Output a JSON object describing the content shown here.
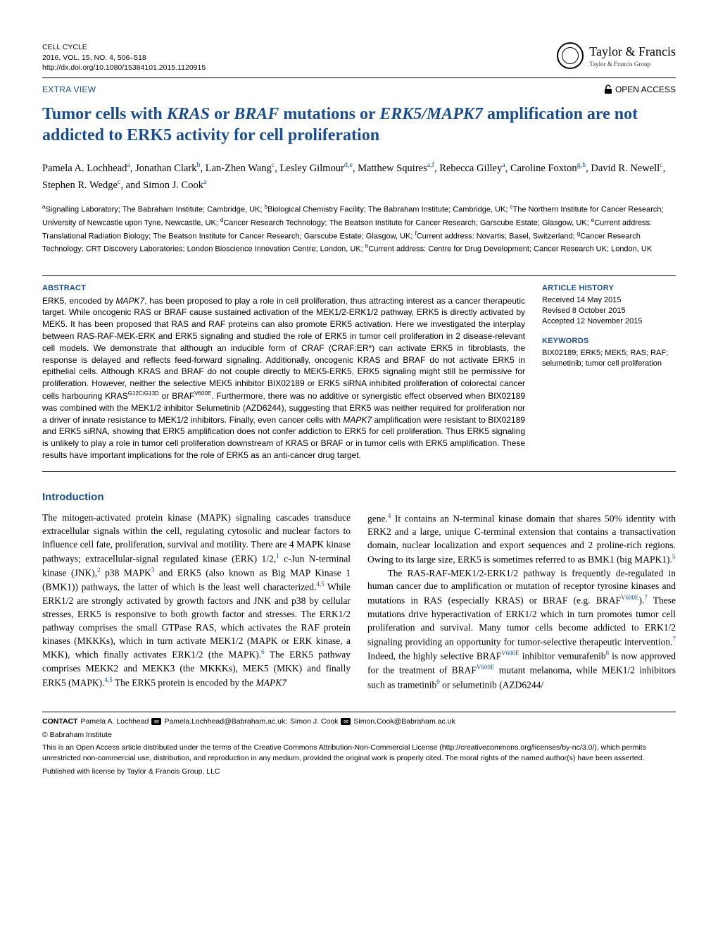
{
  "journal": {
    "name": "CELL CYCLE",
    "volume_line": "2016, VOL. 15, NO. 4, 506–518",
    "doi": "http://dx.doi.org/10.1080/15384101.2015.1120915"
  },
  "publisher": {
    "name": "Taylor & Francis",
    "group": "Taylor & Francis Group"
  },
  "article_type": "EXTRA VIEW",
  "open_access": "OPEN ACCESS",
  "title_part1": "Tumor cells with ",
  "title_kras": "KRAS",
  "title_or1": " or ",
  "title_braf": "BRAF",
  "title_mut": " mutations or ",
  "title_erk5": "ERK5/MAPK7",
  "title_part2": " amplification are not addicted to ERK5 activity for cell proliferation",
  "authors_html": "Pamela A. Lochhead<sup>a</sup>, Jonathan Clark<sup>b</sup>, Lan-Zhen Wang<sup>c</sup>, Lesley Gilmour<sup>d,e</sup>, Matthew Squires<sup>a,f</sup>, Rebecca Gilley<sup>a</sup>, Caroline Foxton<sup>g,h</sup>, David R. Newell<sup>c</sup>, Stephen R. Wedge<sup>c</sup>, and Simon J. Cook<sup>a</sup>",
  "affiliations": "<sup>a</sup>Signalling Laboratory; The Babraham Institute; Cambridge, UK; <sup>b</sup>Biological Chemistry Facility; The Babraham Institute; Cambridge, UK; <sup>c</sup>The Northern Institute for Cancer Research; University of Newcastle upon Tyne, Newcastle, UK; <sup>d</sup>Cancer Research Technology; The Beatson Institute for Cancer Research; Garscube Estate; Glasgow, UK; <sup>e</sup>Current address: Translational Radiation Biology; The Beatson Institute for Cancer Research; Garscube Estate; Glasgow, UK; <sup>f</sup>Current address: Novartis; Basel, Switzerland; <sup>g</sup>Cancer Research Technology; CRT Discovery Laboratories; London Bioscience Innovation Centre; London, UK; <sup>h</sup>Current address: Centre for Drug Development; Cancer Research UK; London, UK",
  "abstract_label": "ABSTRACT",
  "abstract_text": "ERK5, encoded by <i>MAPK7</i>, has been proposed to play a role in cell proliferation, thus attracting interest as a cancer therapeutic target. While oncogenic RAS or BRAF cause sustained activation of the MEK1/2-ERK1/2 pathway, ERK5 is directly activated by MEK5. It has been proposed that RAS and RAF proteins can also promote ERK5 activation. Here we investigated the interplay between RAS-RAF-MEK-ERK and ERK5 signaling and studied the role of ERK5 in tumor cell proliferation in 2 disease-relevant cell models. We demonstrate that although an inducible form of CRAF (CRAF:ER*) can activate ERK5 in fibroblasts, the response is delayed and reflects feed-forward signaling. Additionally, oncogenic KRAS and BRAF do not activate ERK5 in epithelial cells. Although KRAS and BRAF do not couple directly to MEK5-ERK5, ERK5 signaling might still be permissive for proliferation. However, neither the selective MEK5 inhibitor BIX02189 or ERK5 siRNA inhibited proliferation of colorectal cancer cells harbouring KRAS<sup>G12C/G13D</sup> or BRAF<sup>V600E</sup>. Furthermore, there was no additive or synergistic effect observed when BIX02189 was combined with the MEK1/2 inhibitor Selumetinib (AZD6244), suggesting that ERK5 was neither required for proliferation nor a driver of innate resistance to MEK1/2 inhibitors. Finally, even cancer cells with <i>MAPK7</i> amplification were resistant to BIX02189 and ERK5 siRNA, showing that ERK5 amplification does not confer addiction to ERK5 for cell proliferation. Thus ERK5 signaling is unlikely to play a role in tumor cell proliferation downstream of KRAS or BRAF or in tumor cells with ERK5 amplification. These results have important implications for the role of ERK5 as an anti-cancer drug target.",
  "history_label": "ARTICLE HISTORY",
  "history": {
    "received": "Received 14 May 2015",
    "revised": "Revised 8 October 2015",
    "accepted": "Accepted 12 November 2015"
  },
  "keywords_label": "KEYWORDS",
  "keywords": "BIX02189; ERK5; MEK5; RAS; RAF; selumetinib; tumor cell proliferation",
  "intro_heading": "Introduction",
  "body_col1": "The mitogen-activated protein kinase (MAPK) signaling cascades transduce extracellular signals within the cell, regulating cytosolic and nuclear factors to influence cell fate, proliferation, survival and motility. There are 4 MAPK kinase pathways; extracellular-signal regulated kinase (ERK) 1/2,<sup>1</sup> c-Jun N-terminal kinase (JNK),<sup>2</sup> p38 MAPK<sup>3</sup> and ERK5 (also known as Big MAP Kinase 1 (BMK1)) pathways, the latter of which is the least well characterized.<sup>4,5</sup> While ERK1/2 are strongly activated by growth factors and JNK and p38 by cellular stresses, ERK5 is responsive to both growth factor and stresses. The ERK1/2 pathway comprises the small GTPase RAS, which activates the RAF protein kinases (MKKKs), which in turn activate MEK1/2 (MAPK or ERK kinase, a MKK), which finally activates ERK1/2 (the MAPK).<sup>6</sup> The ERK5 pathway comprises MEKK2 and MEKK3 (the MKKKs), MEK5 (MKK) and finally ERK5 (MAPK).<sup>4,5</sup> The ERK5 protein is encoded by the <span class=\"italic\">MAPK7</span>",
  "body_col2": "gene.<sup>4</sup> It contains an N-terminal kinase domain that shares 50% identity with ERK2 and a large, unique C-terminal extension that contains a transactivation domain, nuclear localization and export sequences and 2 proline-rich regions. Owing to its large size, ERK5 is sometimes referred to as BMK1 (big MAPK1).<sup>5</sup><br>&nbsp;&nbsp;&nbsp;&nbsp;The RAS-RAF-MEK1/2-ERK1/2 pathway is frequently de-regulated in human cancer due to amplification or mutation of receptor tyrosine kinases and mutations in RAS (especially KRAS) or BRAF (e.g. BRAF<sup>V600E</sup>).<sup>7</sup> These mutations drive hyperactivation of ERK1/2 which in turn promotes tumor cell proliferation and survival. Many tumor cells become addicted to ERK1/2 signaling providing an opportunity for tumor-selective therapeutic intervention.<sup>7</sup> Indeed, the highly selective BRAF<sup>V600E</sup> inhibitor vemurafenib<sup>8</sup> is now approved for the treatment of BRAF<sup>V600E</sup> mutant melanoma, while MEK1/2 inhibitors such as trametinib<sup>9</sup> or selumetinib (AZD6244/",
  "contact_label": "CONTACT",
  "contact_name1": "Pamela A. Lochhead",
  "contact_email1": "Pamela.Lochhead@Babraham.ac.uk;",
  "contact_name2": "Simon J. Cook",
  "contact_email2": "Simon.Cook@Babraham.ac.uk",
  "copyright": "© Babraham Institute",
  "license": "This is an Open Access article distributed under the terms of the Creative Commons Attribution-Non-Commercial License (http://creativecommons.org/licenses/by-nc/3.0/), which permits unrestricted non-commercial use, distribution, and reproduction in any medium, provided the original work is properly cited. The moral rights of the named author(s) have been asserted.",
  "pub_line": "Published with license by Taylor & Francis Group, LLC"
}
